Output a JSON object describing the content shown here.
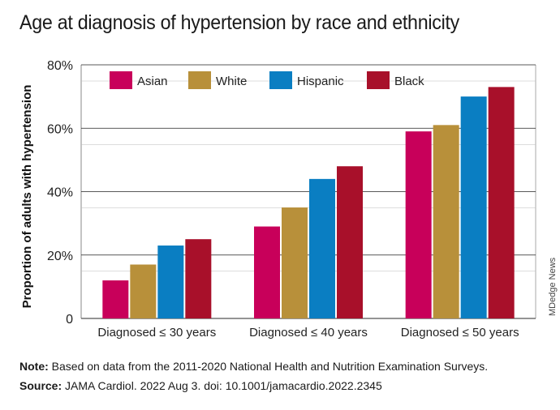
{
  "title": "Age at diagnosis of hypertension by race and ethnicity",
  "chart_data": {
    "type": "bar",
    "title": "Age at diagnosis of hypertension by race and ethnicity",
    "xlabel": "",
    "ylabel": "Proportion of adults with hypertension",
    "ylim": [
      0,
      80
    ],
    "yticks": [
      "0",
      "20%",
      "40%",
      "60%",
      "80%"
    ],
    "ytick_values": [
      0,
      20,
      40,
      60,
      80
    ],
    "categories": [
      "Diagnosed ≤ 30 years",
      "Diagnosed ≤ 40 years",
      "Diagnosed ≤ 50 years"
    ],
    "series": [
      {
        "name": "Asian",
        "color": "#c8005a",
        "values": [
          12,
          29,
          59
        ]
      },
      {
        "name": "White",
        "color": "#b8903a",
        "values": [
          17,
          35,
          61
        ]
      },
      {
        "name": "Hispanic",
        "color": "#0a7ec2",
        "values": [
          23,
          44,
          70
        ]
      },
      {
        "name": "Black",
        "color": "#a8102a",
        "values": [
          25,
          48,
          73
        ]
      }
    ],
    "grid": true,
    "legend": "top-inside"
  },
  "note": {
    "label": "Note:",
    "text": " Based on data from the 2011-2020 National Health and Nutrition Examination Surveys."
  },
  "source": {
    "label": "Source:",
    "text": " JAMA Cardiol. 2022 Aug 3. doi: 10.1001/jamacardio.2022.2345"
  },
  "credit": "MDedge News"
}
